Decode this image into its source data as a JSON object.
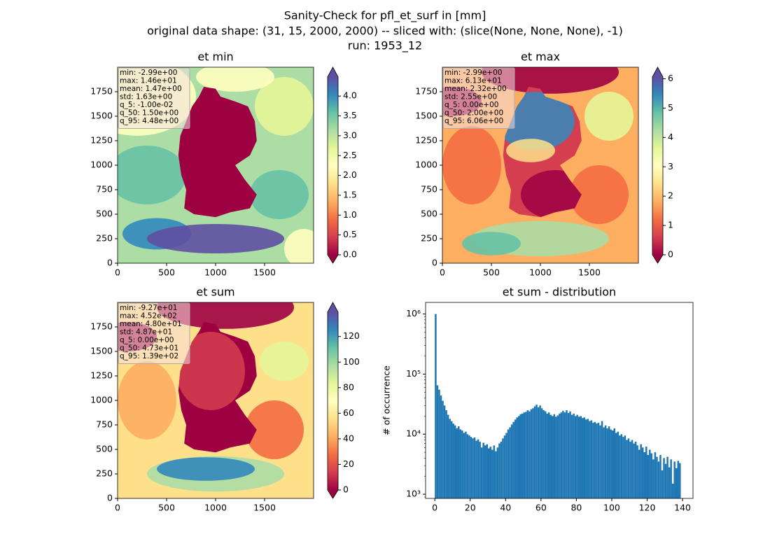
{
  "suptitle": [
    "Sanity-Check for pfl_et_surf in [mm]",
    "original data shape: (31, 15, 2000, 2000) -- sliced with: (slice(None, None, None), -1)",
    "run: 1953_12"
  ],
  "chart_data": [
    {
      "type": "heatmap",
      "title": "et min",
      "colormap": "Spectral",
      "xlim": [
        0,
        2000
      ],
      "ylim": [
        0,
        2000
      ],
      "xticks": [
        0,
        500,
        1000,
        1500
      ],
      "yticks": [
        0,
        250,
        500,
        750,
        1000,
        1250,
        1500,
        1750
      ],
      "annotation": [
        "min: -2.99e+00",
        "max: 1.46e+01",
        "mean: 1.47e+00",
        "std: 1.63e+00",
        "q_5: -1.00e-02",
        "q_50: 1.50e+00",
        "q_95: 4.48e+00"
      ],
      "colorbar": {
        "clim": [
          0,
          4.48
        ],
        "extend": "both",
        "ticks": [
          {
            "value": 0,
            "label": "0.0"
          },
          0.5,
          {
            "value": 1,
            "label": "1.0"
          },
          1.5,
          {
            "value": 2,
            "label": "2.0"
          },
          2.5,
          {
            "value": 3,
            "label": "3.0"
          },
          3.5,
          {
            "value": 4,
            "label": "4.0"
          }
        ]
      }
    },
    {
      "type": "heatmap",
      "title": "et max",
      "colormap": "Spectral",
      "xlim": [
        0,
        2000
      ],
      "ylim": [
        0,
        2000
      ],
      "xticks": [
        0,
        500,
        1000,
        1500
      ],
      "yticks": [
        0,
        250,
        500,
        750,
        1000,
        1250,
        1500,
        1750
      ],
      "annotation": [
        "min: -2.99e+00",
        "max: 6.13e+01",
        "mean: 2.32e+00",
        "std: 2.55e+00",
        "q_5: 0.00e+00",
        "q_50: 2.00e+00",
        "q_95: 6.06e+00"
      ],
      "colorbar": {
        "clim": [
          0,
          6.06
        ],
        "extend": "both",
        "ticks": [
          0,
          1,
          2,
          3,
          4,
          5,
          6
        ]
      }
    },
    {
      "type": "heatmap",
      "title": "et sum",
      "colormap": "Spectral",
      "xlim": [
        0,
        2000
      ],
      "ylim": [
        0,
        2000
      ],
      "xticks": [
        0,
        500,
        1000,
        1500
      ],
      "yticks": [
        0,
        250,
        500,
        750,
        1000,
        1250,
        1500,
        1750
      ],
      "annotation": [
        "min: -9.27e+01",
        "max: 4.52e+02",
        "mean: 4.80e+01",
        "std: 4.87e+01",
        "q_5: 0.00e+00",
        "q_50: 4.73e+01",
        "q_95: 1.39e+02"
      ],
      "colorbar": {
        "clim": [
          0,
          139
        ],
        "extend": "both",
        "ticks": [
          0,
          20,
          40,
          60,
          80,
          100,
          120
        ]
      }
    },
    {
      "type": "histogram",
      "title": "et sum - distribution",
      "ylabel": "# of occurrence",
      "color": "#1f77b4",
      "log_y": true,
      "xlim": [
        -5.2,
        145.9
      ],
      "ylim": [
        853,
        1560000
      ],
      "xticks": [
        0,
        20,
        40,
        60,
        80,
        100,
        120,
        140
      ],
      "yticks": [
        {
          "value": 1000,
          "label": "10³"
        },
        {
          "value": 10000,
          "label": "10⁴"
        },
        {
          "value": 100000,
          "label": "10⁵"
        },
        {
          "value": 1000000,
          "label": "10⁶"
        }
      ],
      "bins": [
        0,
        1,
        2,
        3,
        4,
        5,
        6,
        7,
        8,
        9,
        10,
        11,
        12,
        13,
        14,
        15,
        16,
        17,
        18,
        19,
        20,
        21,
        22,
        23,
        24,
        25,
        26,
        27,
        28,
        29,
        30,
        31,
        32,
        33,
        34,
        35,
        36,
        37,
        38,
        39,
        40,
        41,
        42,
        43,
        44,
        45,
        46,
        47,
        48,
        49,
        50,
        51,
        52,
        53,
        54,
        55,
        56,
        57,
        58,
        59,
        60,
        61,
        62,
        63,
        64,
        65,
        66,
        67,
        68,
        69,
        70,
        71,
        72,
        73,
        74,
        75,
        76,
        77,
        78,
        79,
        80,
        81,
        82,
        83,
        84,
        85,
        86,
        87,
        88,
        89,
        90,
        91,
        92,
        93,
        94,
        95,
        96,
        97,
        98,
        99,
        100,
        101,
        102,
        103,
        104,
        105,
        106,
        107,
        108,
        109,
        110,
        111,
        112,
        113,
        114,
        115,
        116,
        117,
        118,
        119,
        120,
        121,
        122,
        123,
        124,
        125,
        126,
        127,
        128,
        129,
        130,
        131,
        132,
        133,
        134,
        135,
        136,
        137,
        138,
        139
      ],
      "values": [
        1000000,
        65000,
        55000,
        44000,
        36000,
        30000,
        25000,
        21000,
        18000,
        16500,
        15000,
        14000,
        12500,
        13500,
        12000,
        11500,
        10500,
        11000,
        10000,
        9500,
        9000,
        8500,
        8800,
        7800,
        8200,
        7500,
        6000,
        7200,
        6500,
        6800,
        5800,
        6200,
        5500,
        6500,
        5200,
        6000,
        7000,
        7500,
        8500,
        9500,
        10500,
        12000,
        13000,
        14500,
        16000,
        17500,
        19000,
        20000,
        21500,
        22000,
        23000,
        23500,
        25000,
        24000,
        26000,
        27000,
        29000,
        31000,
        28000,
        30000,
        27000,
        25000,
        24000,
        22000,
        23000,
        21000,
        20000,
        21500,
        19500,
        20500,
        22000,
        23000,
        24500,
        23000,
        25000,
        22500,
        24000,
        21000,
        22000,
        20000,
        21000,
        19500,
        20000,
        18500,
        19000,
        17500,
        18000,
        16500,
        17000,
        15500,
        16000,
        15000,
        15500,
        14000,
        16500,
        13000,
        14000,
        12500,
        13500,
        12000,
        11500,
        12500,
        10500,
        11000,
        9500,
        10000,
        9000,
        9500,
        8000,
        8500,
        7500,
        8000,
        7000,
        7500,
        6500,
        5500,
        6800,
        6000,
        5000,
        6200,
        4500,
        5500,
        4800,
        3800,
        5000,
        4200,
        3500,
        4500,
        2500,
        4000,
        3200,
        4200,
        2800,
        3800,
        1500,
        3500,
        2700,
        3600,
        3300
      ]
    }
  ]
}
